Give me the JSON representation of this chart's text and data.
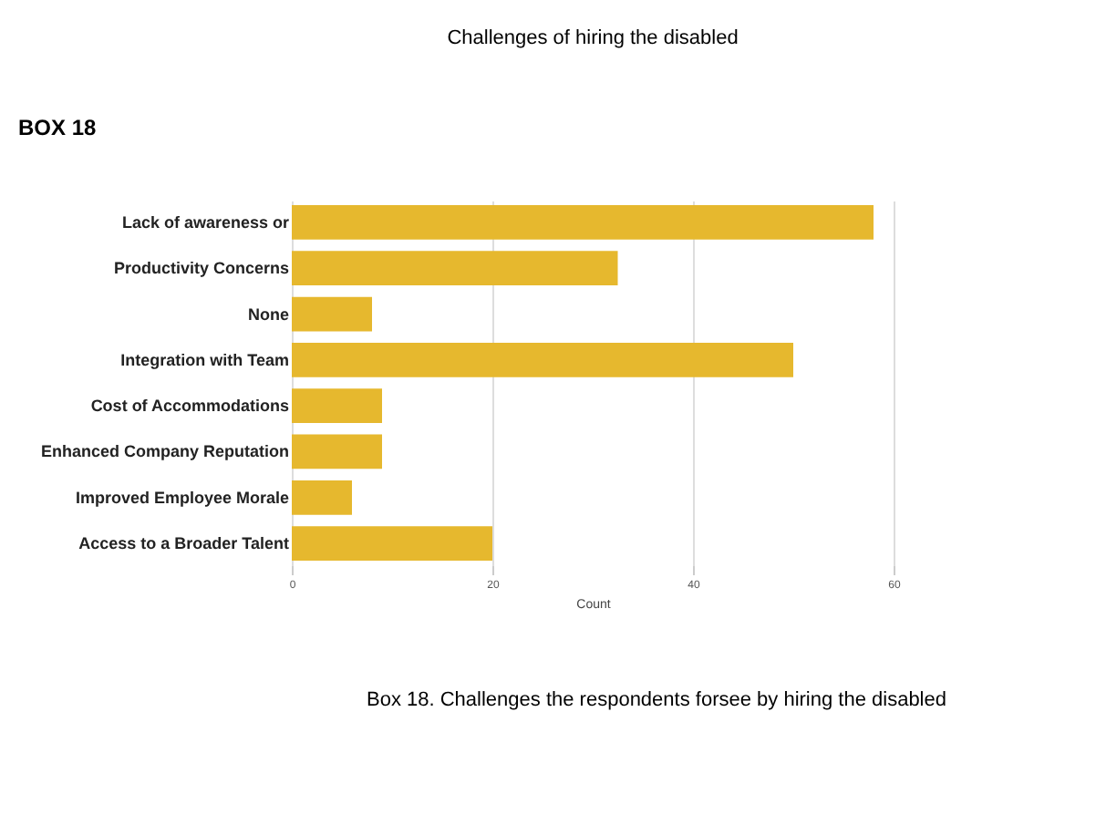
{
  "chart_data": {
    "type": "bar",
    "orientation": "horizontal",
    "title": "Challenges of hiring the disabled",
    "xlabel": "Count",
    "categories": [
      "Lack of awareness or",
      "Productivity Concerns",
      "None",
      "Integration with Team",
      "Cost of Accommodations",
      "Enhanced Company Reputation",
      "Improved Employee Morale",
      "Access to a Broader Talent"
    ],
    "values": [
      58,
      32.5,
      8,
      50,
      9,
      9,
      6,
      20
    ],
    "color": "#e6b82e",
    "xlim": [
      0,
      60
    ],
    "xticks": [
      0,
      20,
      40,
      60
    ],
    "grid": "x",
    "annotations": [
      "BOX 18",
      "Box 18. Challenges the respondents forsee by  hiring the disabled"
    ]
  }
}
